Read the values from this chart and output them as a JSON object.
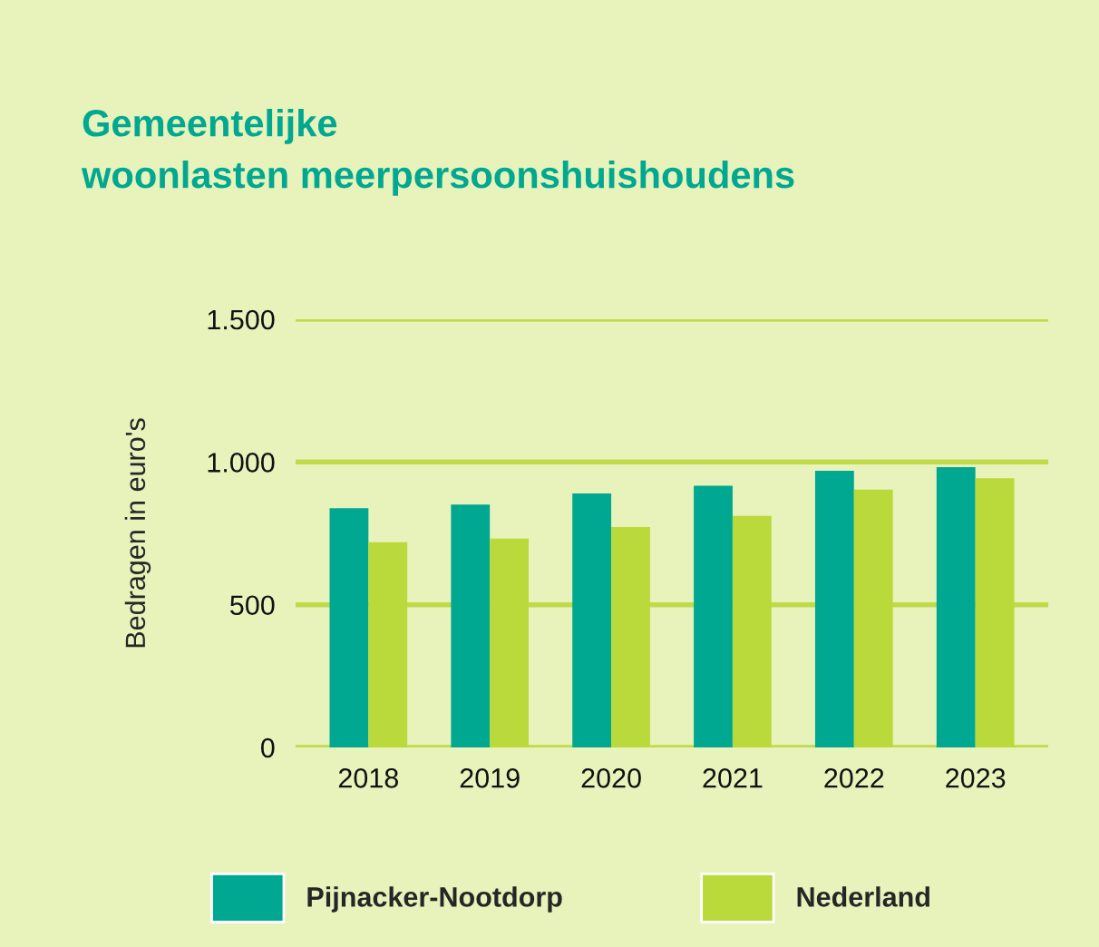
{
  "chart_data": {
    "type": "bar",
    "title": "Gemeentelijke\nwoonlasten meerpersoonshuishoudens",
    "ylabel": "Bedragen in euro's",
    "categories": [
      "2018",
      "2019",
      "2020",
      "2021",
      "2022",
      "2023"
    ],
    "series": [
      {
        "name": "Pijnacker-Nootdorp",
        "color": "#00a891",
        "values": [
          838,
          851,
          890,
          917,
          969,
          982
        ]
      },
      {
        "name": "Nederland",
        "color": "#bad93a",
        "values": [
          719,
          732,
          772,
          811,
          903,
          943
        ]
      }
    ],
    "ylim": [
      0,
      1500
    ],
    "yticks": [
      0,
      500,
      {
        "value": 1000,
        "label": "1.000"
      },
      {
        "value": 1500,
        "label": "1.500"
      }
    ],
    "grid": "y",
    "legend": "bottom"
  }
}
